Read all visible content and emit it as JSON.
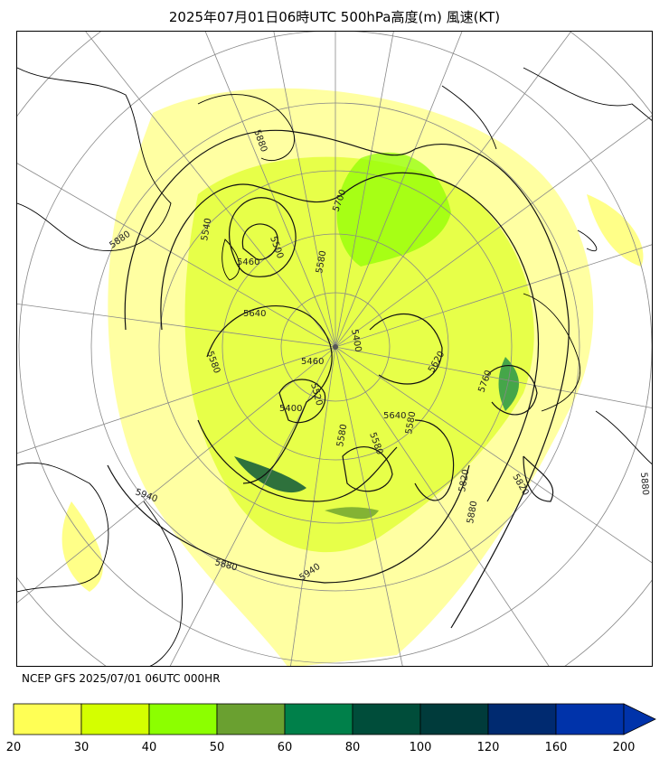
{
  "title": "2025年07月01日06時UTC 500hPa高度(m) 風速(KT)",
  "source_text": "NCEP GFS 2025/07/01 06UTC 000HR",
  "colorbar": {
    "ticks": [
      "20",
      "30",
      "40",
      "50",
      "60",
      "80",
      "100",
      "120",
      "160",
      "200"
    ],
    "colors": [
      "#ffff55",
      "#d4ff00",
      "#8cff00",
      "#6aa030",
      "#00804a",
      "#004d3a",
      "#003b3b",
      "#002a70",
      "#0033aa"
    ]
  },
  "contour_labels": [
    {
      "text": "5880",
      "id": "c1"
    },
    {
      "text": "5880",
      "id": "c2"
    },
    {
      "text": "5540",
      "id": "c3"
    },
    {
      "text": "5460",
      "id": "c4"
    },
    {
      "text": "5500",
      "id": "c5"
    },
    {
      "text": "5700",
      "id": "c6"
    },
    {
      "text": "5580",
      "id": "c7"
    },
    {
      "text": "5580",
      "id": "c8"
    },
    {
      "text": "5640",
      "id": "c9"
    },
    {
      "text": "5460",
      "id": "c10"
    },
    {
      "text": "5520",
      "id": "c11"
    },
    {
      "text": "5400",
      "id": "c12"
    },
    {
      "text": "5640",
      "id": "c13"
    },
    {
      "text": "5580",
      "id": "c14"
    },
    {
      "text": "5580",
      "id": "c15"
    },
    {
      "text": "5580",
      "id": "c16"
    },
    {
      "text": "5820",
      "id": "c17"
    },
    {
      "text": "5820",
      "id": "c18"
    },
    {
      "text": "5880",
      "id": "c19"
    },
    {
      "text": "5760",
      "id": "c20"
    },
    {
      "text": "5940",
      "id": "c21"
    },
    {
      "text": "5880",
      "id": "c22"
    },
    {
      "text": "5940",
      "id": "c23"
    },
    {
      "text": "5880",
      "id": "c24"
    },
    {
      "text": "5620",
      "id": "c25"
    },
    {
      "text": "5400",
      "id": "c26"
    }
  ]
}
